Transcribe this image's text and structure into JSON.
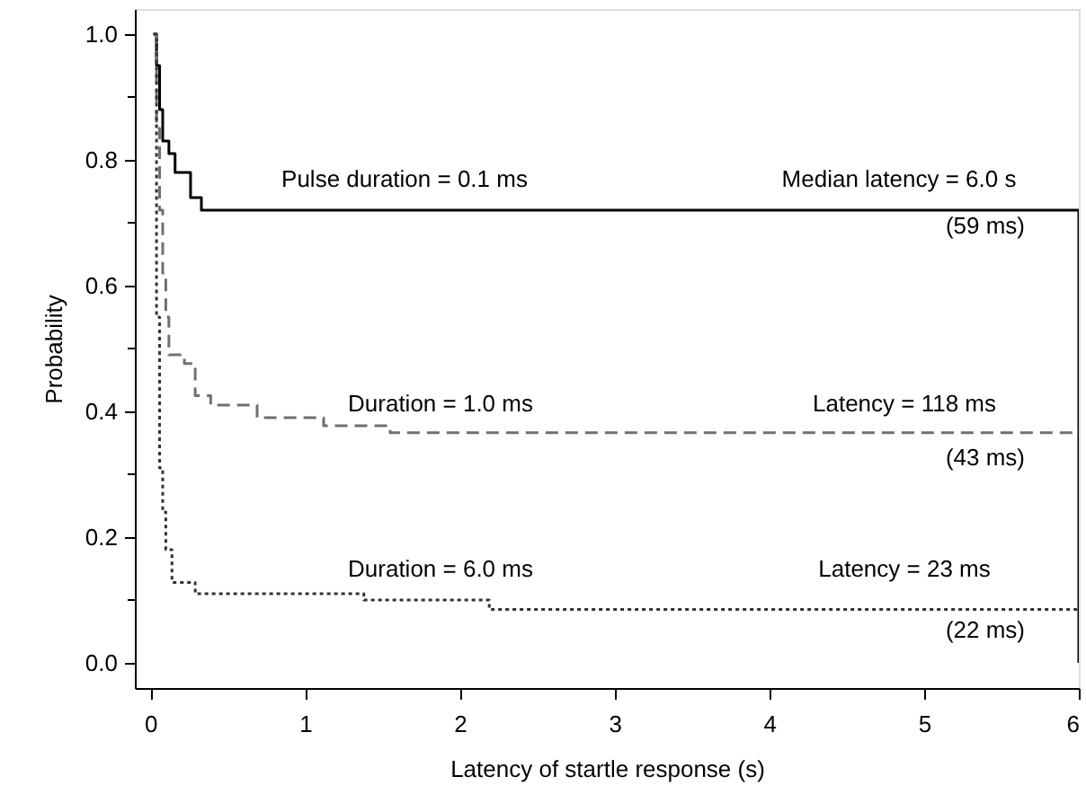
{
  "chart_data": {
    "type": "step",
    "xlabel": "Latency of startle response (s)",
    "ylabel": "Probability",
    "xlim": [
      -0.1,
      6
    ],
    "xticks": [
      0,
      1,
      2,
      3,
      4,
      5,
      6
    ],
    "ylim": [
      -0.04,
      1.04
    ],
    "yticks": [
      {
        "value": 0,
        "label": "0.0"
      },
      {
        "value": 0.1,
        "label": null
      },
      {
        "value": 0.2,
        "label": "0.2"
      },
      {
        "value": 0.3,
        "label": null
      },
      {
        "value": 0.4,
        "label": "0.4"
      },
      {
        "value": 0.5,
        "label": null
      },
      {
        "value": 0.6,
        "label": "0.6"
      },
      {
        "value": 0.7,
        "label": null
      },
      {
        "value": 0.8,
        "label": "0.8"
      },
      {
        "value": 0.9,
        "label": null
      },
      {
        "value": 1.0,
        "label": "1.0"
      }
    ],
    "grid": false,
    "series": [
      {
        "color": "#000000",
        "line_style": "solid",
        "x": [
          0.02,
          0.04,
          0.06,
          0.08,
          0.12,
          0.16,
          0.2,
          0.26,
          0.33,
          6,
          6
        ],
        "values": [
          1.0,
          0.95,
          0.88,
          0.83,
          0.81,
          0.78,
          0.78,
          0.74,
          0.72,
          0.72,
          0.0
        ]
      },
      {
        "color": "#707070",
        "line_style": "dashed",
        "x": [
          0.02,
          0.04,
          0.06,
          0.08,
          0.1,
          0.12,
          0.22,
          0.29,
          0.39,
          0.69,
          1.12,
          1.55,
          6
        ],
        "values": [
          1.0,
          0.85,
          0.72,
          0.62,
          0.55,
          0.49,
          0.476,
          0.425,
          0.41,
          0.39,
          0.377,
          0.366,
          0.366
        ]
      },
      {
        "color": "#333333",
        "line_style": "dotted",
        "x": [
          0.02,
          0.04,
          0.06,
          0.08,
          0.1,
          0.14,
          0.29,
          1.38,
          2.19,
          6
        ],
        "values": [
          1.0,
          0.55,
          0.31,
          0.24,
          0.18,
          0.128,
          0.11,
          0.1,
          0.085,
          0.085
        ]
      }
    ],
    "annotations": [
      "Pulse duration = 0.1 ms",
      "Median latency = 6.0 s",
      "(59 ms)",
      "Duration = 1.0 ms",
      "Latency = 118 ms",
      "(43 ms)",
      "Duration = 6.0 ms",
      "Latency = 23 ms",
      "(22 ms)"
    ]
  }
}
